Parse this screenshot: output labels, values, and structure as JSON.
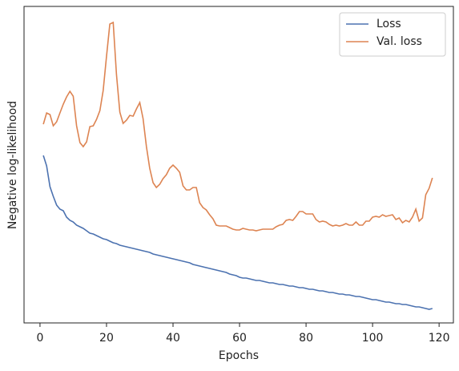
{
  "chart_data": {
    "type": "line",
    "x_label": "Epochs",
    "y_label": "Negative log-likelihood",
    "x": [
      1,
      2,
      3,
      4,
      5,
      6,
      7,
      8,
      9,
      10,
      11,
      12,
      13,
      14,
      15,
      16,
      17,
      18,
      19,
      20,
      21,
      22,
      23,
      24,
      25,
      26,
      27,
      28,
      29,
      30,
      31,
      32,
      33,
      34,
      35,
      36,
      37,
      38,
      39,
      40,
      41,
      42,
      43,
      44,
      45,
      46,
      47,
      48,
      49,
      50,
      51,
      52,
      53,
      54,
      55,
      56,
      57,
      58,
      59,
      60,
      61,
      62,
      63,
      64,
      65,
      66,
      67,
      68,
      69,
      70,
      71,
      72,
      73,
      74,
      75,
      76,
      77,
      78,
      79,
      80,
      81,
      82,
      83,
      84,
      85,
      86,
      87,
      88,
      89,
      90,
      91,
      92,
      93,
      94,
      95,
      96,
      97,
      98,
      99,
      100,
      101,
      102,
      103,
      104,
      105,
      106,
      107,
      108,
      109,
      110,
      111,
      112,
      113,
      114,
      115,
      116,
      117,
      118
    ],
    "series": [
      {
        "name": "Loss",
        "color": "#4c72b0",
        "values": [
          209,
          196,
          170,
          158,
          147,
          142,
          140,
          132,
          128,
          126,
          122,
          120,
          118,
          115,
          112,
          111,
          109,
          107,
          105,
          104,
          102,
          100,
          99,
          97,
          96,
          95,
          94,
          93,
          92,
          91,
          90,
          89,
          88,
          86,
          85,
          84,
          83,
          82,
          81,
          80,
          79,
          78,
          77,
          76,
          75,
          73,
          72,
          71,
          70,
          69,
          68,
          67,
          66,
          65,
          64,
          63,
          61,
          60,
          59,
          57,
          56,
          56,
          55,
          54,
          53,
          53,
          52,
          51,
          50,
          50,
          49,
          48,
          48,
          47,
          46,
          46,
          45,
          44,
          44,
          43,
          42,
          42,
          41,
          40,
          40,
          39,
          38,
          38,
          37,
          36,
          36,
          35,
          35,
          34,
          33,
          33,
          32,
          31,
          30,
          29,
          29,
          28,
          27,
          26,
          26,
          25,
          24,
          24,
          23,
          23,
          22,
          21,
          20,
          20,
          19,
          18,
          17,
          18
        ]
      },
      {
        "name": "Val. loss",
        "color": "#dd8452",
        "values": [
          248,
          262,
          260,
          246,
          251,
          262,
          273,
          282,
          289,
          283,
          246,
          225,
          220,
          226,
          245,
          246,
          254,
          265,
          290,
          333,
          373,
          375,
          310,
          263,
          249,
          253,
          259,
          258,
          267,
          275,
          255,
          220,
          193,
          175,
          169,
          173,
          180,
          185,
          193,
          197,
          193,
          188,
          171,
          166,
          166,
          169,
          169,
          150,
          144,
          141,
          135,
          130,
          122,
          121,
          121,
          121,
          119,
          117,
          116,
          116,
          118,
          117,
          116,
          116,
          115,
          116,
          117,
          117,
          117,
          117,
          120,
          122,
          123,
          128,
          129,
          128,
          133,
          139,
          139,
          136,
          136,
          136,
          129,
          126,
          127,
          126,
          123,
          121,
          122,
          121,
          122,
          124,
          122,
          122,
          126,
          122,
          122,
          127,
          127,
          132,
          133,
          132,
          135,
          133,
          134,
          135,
          129,
          131,
          125,
          128,
          126,
          132,
          142,
          127,
          131,
          160,
          168,
          181
        ]
      }
    ],
    "xlim": [
      -4.8,
      124.3
    ],
    "xticks": [
      0,
      20,
      40,
      60,
      80,
      100,
      120
    ],
    "ylim": [
      0,
      395
    ],
    "legend": "upper right"
  }
}
